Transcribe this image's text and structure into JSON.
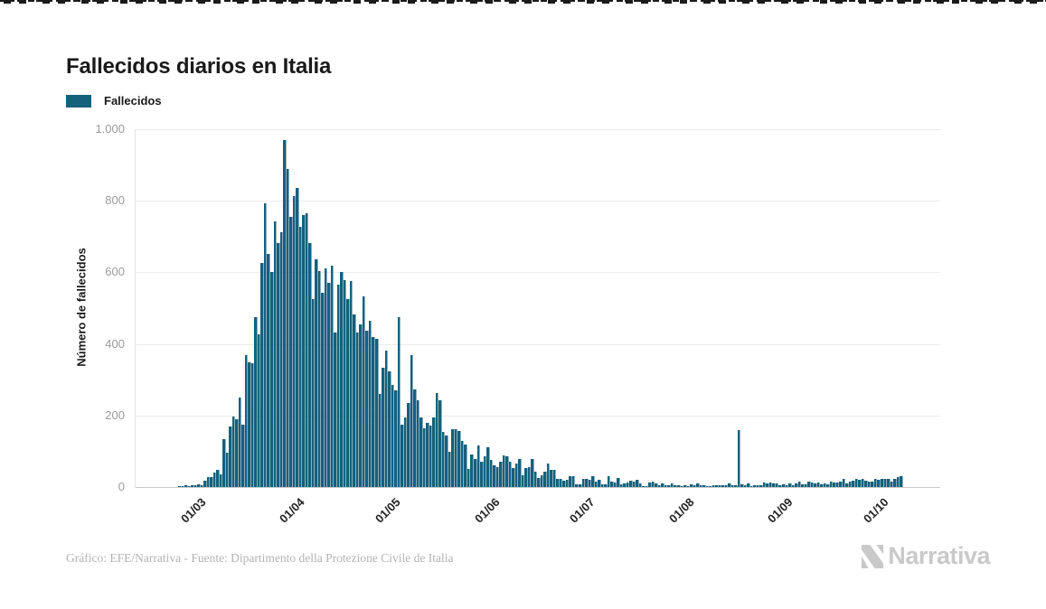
{
  "page": {
    "background": "#ffffff"
  },
  "chart_data": {
    "type": "bar",
    "title": "Fallecidos diarios en Italia",
    "ylabel": "Número de fallecidos",
    "xlabel": "",
    "ylim": [
      0,
      1000
    ],
    "grid": "horizontal",
    "legend_position": "top-left",
    "legend": [
      {
        "label": "Fallecidos",
        "color": "#15607d"
      }
    ],
    "y_ticks": [
      {
        "value": 0,
        "label": "0"
      },
      {
        "value": 200,
        "label": "200"
      },
      {
        "value": 400,
        "label": "400"
      },
      {
        "value": 600,
        "label": "600"
      },
      {
        "value": 800,
        "label": "800"
      },
      {
        "value": 1000,
        "label": "1.000"
      }
    ],
    "x_ticks": [
      {
        "label": "01/03",
        "day_index": 9
      },
      {
        "label": "01/04",
        "day_index": 40
      },
      {
        "label": "01/05",
        "day_index": 70
      },
      {
        "label": "01/06",
        "day_index": 101
      },
      {
        "label": "01/07",
        "day_index": 131
      },
      {
        "label": "01/08",
        "day_index": 162
      },
      {
        "label": "01/09",
        "day_index": 193
      },
      {
        "label": "01/10",
        "day_index": 223
      }
    ],
    "values": [
      1,
      1,
      2,
      3,
      4,
      2,
      5,
      4,
      8,
      5,
      18,
      27,
      28,
      41,
      49,
      36,
      133,
      97,
      168,
      196,
      189,
      250,
      175,
      368,
      349,
      345,
      475,
      427,
      627,
      793,
      651,
      601,
      743,
      683,
      712,
      969,
      889,
      756,
      812,
      837,
      727,
      760,
      766,
      681,
      525,
      636,
      604,
      542,
      610,
      570,
      619,
      431,
      566,
      602,
      578,
      525,
      575,
      482,
      433,
      454,
      534,
      437,
      464,
      420,
      415,
      260,
      333,
      382,
      323,
      285,
      269,
      474,
      174,
      195,
      236,
      369,
      274,
      243,
      194,
      165,
      179,
      172,
      195,
      262,
      242,
      153,
      145,
      99,
      162,
      161,
      156,
      130,
      119,
      50,
      92,
      78,
      117,
      70,
      87,
      111,
      75,
      60,
      55,
      71,
      88,
      85,
      72,
      53,
      65,
      79,
      34,
      53,
      56,
      78,
      44,
      26,
      34,
      43,
      66,
      47,
      49,
      24,
      23,
      18,
      20,
      30,
      30,
      8,
      8,
      23,
      23,
      21,
      30,
      15,
      21,
      8,
      8,
      30,
      15,
      12,
      25,
      7,
      9,
      13,
      17,
      14,
      20,
      11,
      3,
      3,
      13,
      15,
      10,
      6,
      10,
      5,
      5,
      11,
      5,
      6,
      3,
      5,
      3,
      8,
      5,
      10,
      6,
      6,
      3,
      2,
      6,
      4,
      6,
      6,
      6,
      10,
      4,
      4,
      160,
      8,
      6,
      9,
      3,
      5,
      4,
      4,
      13,
      10,
      13,
      9,
      9,
      4,
      8,
      6,
      10,
      6,
      10,
      16,
      8,
      8,
      14,
      13,
      10,
      12,
      7,
      9,
      8,
      14,
      12,
      13,
      14,
      24,
      11,
      14,
      17,
      23,
      21,
      23,
      17,
      16,
      16,
      23,
      19,
      23,
      24,
      23,
      16,
      22,
      28,
      31
    ]
  },
  "footer": {
    "credit": "Gráfico: EFE/Narrativa - Fuente: Dipartimento della Protezione Civile de Italia",
    "logo_text": "Narrativa"
  },
  "colors": {
    "bar": "#15607d",
    "title": "#1a1a1a",
    "y_tick": "#9b9b9b",
    "x_tick": "#222222",
    "grid": "#ececec",
    "baseline": "#c9c9c9",
    "axis_line": "#e4e4e4",
    "footer_text": "#b3b3b3",
    "logo": "#c9c9c9"
  }
}
